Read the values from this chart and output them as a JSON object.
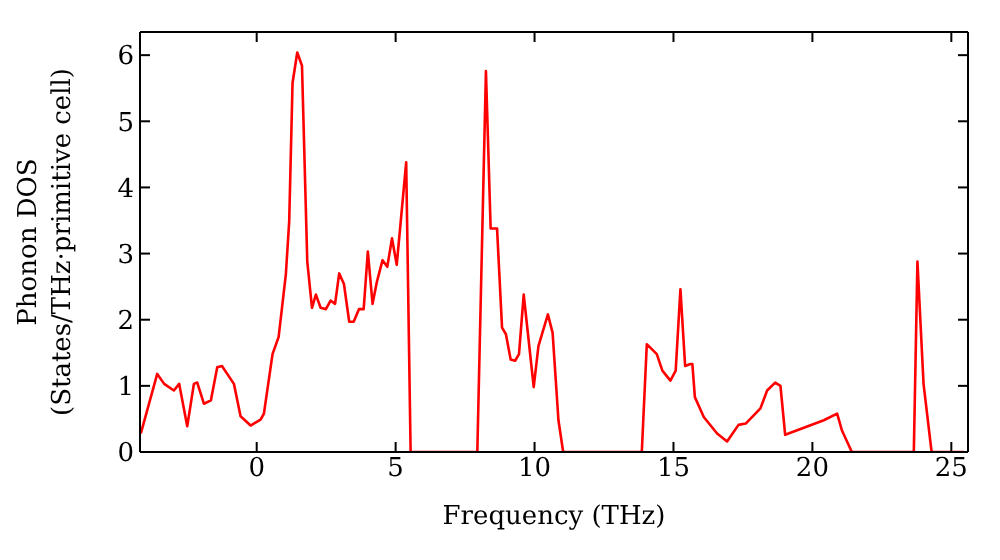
{
  "chart_data": {
    "type": "line",
    "xlabel": "Frequency (THz)",
    "ylabel": "Phonon DOS\n(States/THz·primitive cell)",
    "xlim": [
      -4.2,
      25.6
    ],
    "xticks": [
      0,
      5,
      10,
      15,
      20,
      25
    ],
    "ylim": [
      0,
      6.35
    ],
    "yticks": [
      0,
      1,
      2,
      3,
      4,
      5,
      6
    ],
    "marker": "none",
    "line_style": "solid",
    "x": [
      -4.17,
      -3.58,
      -3.33,
      -2.98,
      -2.79,
      -2.5,
      -2.26,
      -2.14,
      -1.9,
      -1.65,
      -1.42,
      -1.25,
      -0.82,
      -0.58,
      -0.22,
      0.14,
      0.26,
      0.57,
      0.79,
      1.05,
      1.17,
      1.29,
      1.46,
      1.63,
      1.82,
      1.99,
      2.13,
      2.3,
      2.49,
      2.66,
      2.82,
      2.97,
      3.14,
      3.33,
      3.49,
      3.68,
      3.85,
      4.0,
      4.17,
      4.33,
      4.53,
      4.7,
      4.87,
      5.04,
      5.38,
      5.54,
      7.94,
      8.25,
      8.42,
      8.65,
      8.83,
      8.97,
      9.14,
      9.3,
      9.44,
      9.61,
      9.97,
      10.14,
      10.48,
      10.65,
      10.86,
      11.03,
      13.86,
      14.04,
      14.4,
      14.6,
      14.89,
      15.08,
      15.25,
      15.42,
      15.61,
      15.68,
      15.77,
      16.09,
      16.57,
      16.93,
      17.34,
      17.6,
      18.13,
      18.37,
      18.66,
      18.85,
      19.02,
      20.41,
      20.89,
      21.06,
      21.42,
      23.65,
      23.78,
      24.0,
      24.29,
      25.45
    ],
    "series": [
      {
        "color": "#ff0000",
        "values": [
          0.28,
          1.18,
          1.03,
          0.93,
          1.03,
          0.39,
          1.03,
          1.05,
          0.73,
          0.78,
          1.28,
          1.3,
          1.03,
          0.54,
          0.4,
          0.49,
          0.58,
          1.48,
          1.74,
          2.69,
          3.49,
          5.58,
          6.04,
          5.84,
          2.88,
          2.18,
          2.38,
          2.18,
          2.16,
          2.29,
          2.24,
          2.7,
          2.54,
          1.97,
          1.97,
          2.16,
          2.16,
          3.03,
          2.24,
          2.58,
          2.9,
          2.8,
          3.23,
          2.83,
          4.38,
          0,
          0,
          5.76,
          3.38,
          3.38,
          1.88,
          1.78,
          1.4,
          1.38,
          1.48,
          2.38,
          0.98,
          1.6,
          2.08,
          1.8,
          0.48,
          0,
          0,
          1.63,
          1.48,
          1.23,
          1.08,
          1.23,
          2.46,
          1.3,
          1.33,
          1.33,
          0.83,
          0.53,
          0.28,
          0.16,
          0.41,
          0.43,
          0.66,
          0.93,
          1.05,
          1.0,
          0.26,
          0.48,
          0.58,
          0.33,
          0,
          0,
          2.88,
          1.03,
          0,
          0
        ]
      }
    ]
  }
}
